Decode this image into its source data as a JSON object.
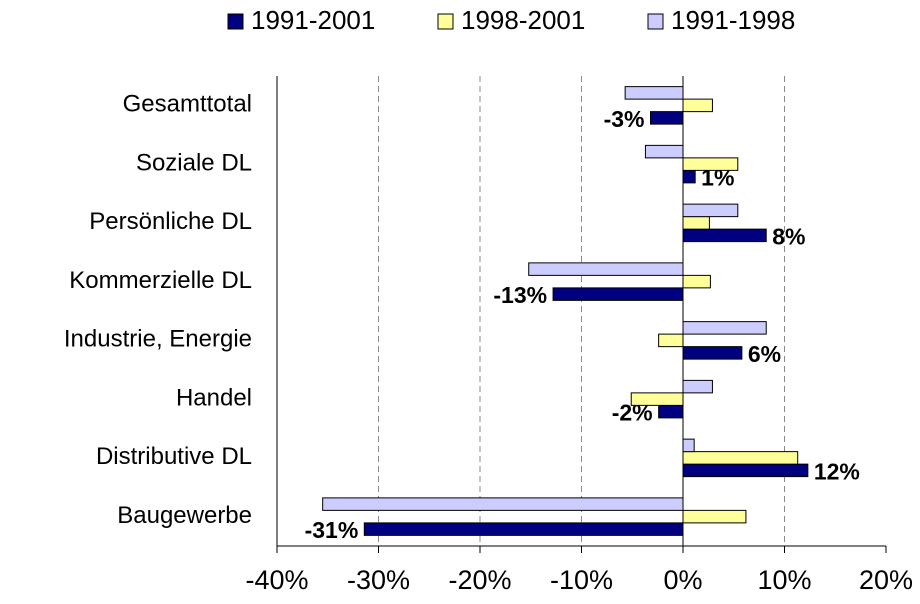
{
  "chart_data": {
    "type": "hbar",
    "categories": [
      "Gesamttotal",
      "Soziale DL",
      "Persönliche DL",
      "Kommerzielle DL",
      "Industrie, Energie",
      "Handel",
      "Distributive DL",
      "Baugewerbe"
    ],
    "series": [
      {
        "name": "1991-2001",
        "color": "#000080",
        "values": [
          -3.2,
          1.2,
          8.2,
          -12.8,
          5.8,
          -2.4,
          12.3,
          -31.4
        ],
        "value_labels": [
          "-3%",
          "1%",
          "8%",
          "-13%",
          "6%",
          "-2%",
          "12%",
          "-31%"
        ]
      },
      {
        "name": "1998-2001",
        "color": "#ffff99",
        "values": [
          2.9,
          5.4,
          2.6,
          2.7,
          -2.4,
          -5.1,
          11.3,
          6.2
        ]
      },
      {
        "name": "1991-1998",
        "color": "#ccccff",
        "values": [
          -5.7,
          -3.7,
          5.4,
          -15.2,
          8.2,
          2.9,
          1.1,
          -35.5
        ]
      }
    ],
    "xlim": [
      -40,
      20
    ],
    "xticks": [
      {
        "value": -40,
        "label": "-40%"
      },
      {
        "value": -30,
        "label": "-30%"
      },
      {
        "value": -20,
        "label": "-20%"
      },
      {
        "value": -10,
        "label": "-10%"
      },
      {
        "value": 0,
        "label": "0%"
      },
      {
        "value": 10,
        "label": "10%"
      },
      {
        "value": 20,
        "label": "20%"
      }
    ],
    "grid": true,
    "legend": "top"
  }
}
